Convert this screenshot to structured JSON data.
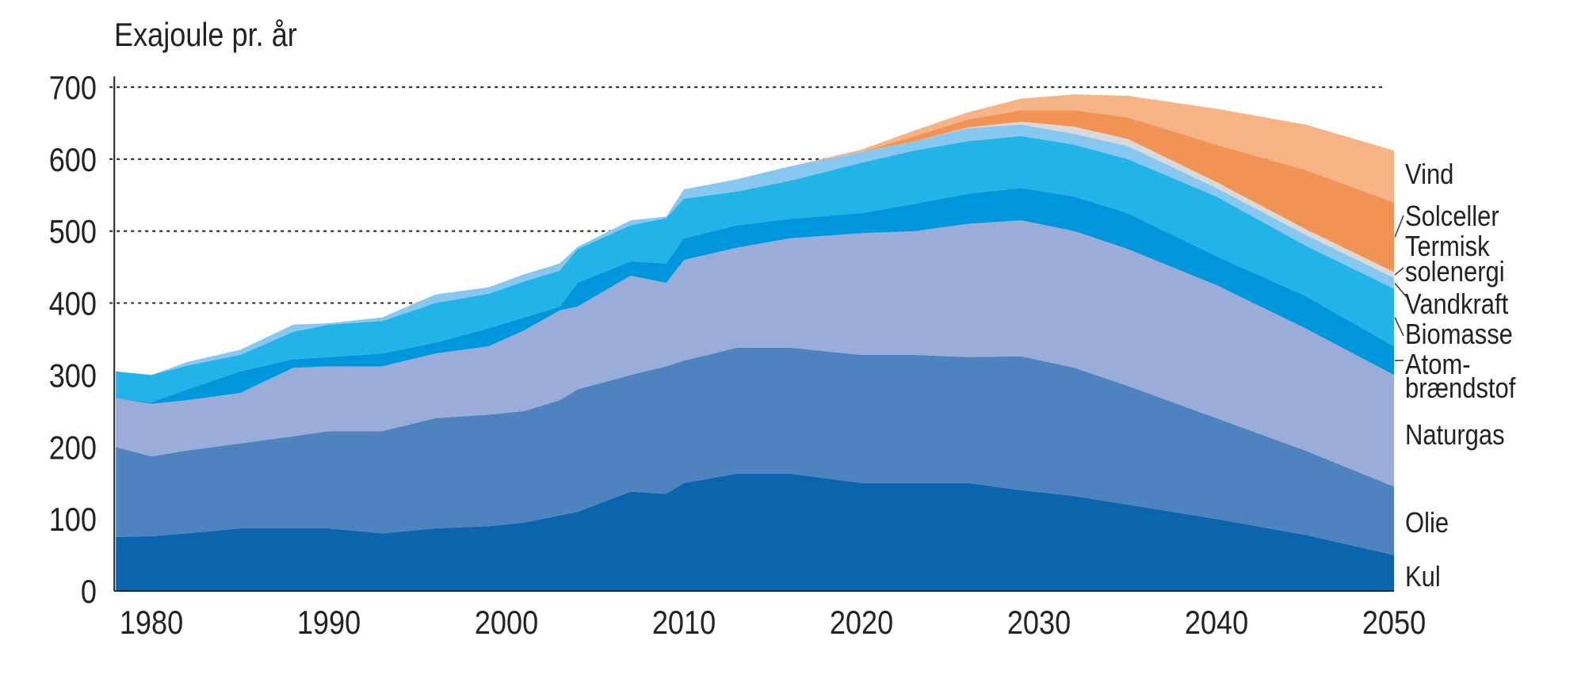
{
  "chart_data": {
    "type": "area",
    "stacked": true,
    "title": "",
    "ylabel": "Exajoule pr. år",
    "xlabel": "",
    "ylim": [
      0,
      700
    ],
    "xlim": [
      1978,
      2050
    ],
    "yticks": [
      0,
      100,
      200,
      300,
      400,
      500,
      600,
      700
    ],
    "xticks": [
      1980,
      1990,
      2000,
      2010,
      2020,
      2030,
      2040,
      2050
    ],
    "grid": "dotted horizontal at 400, 500, 600, 700",
    "legend": "right, labels at series ends",
    "x": [
      1978,
      1980,
      1982,
      1985,
      1988,
      1990,
      1993,
      1996,
      1999,
      2001,
      2003,
      2004,
      2007,
      2009,
      2010,
      2013,
      2016,
      2020,
      2023,
      2026,
      2029,
      2032,
      2035,
      2040,
      2045,
      2050
    ],
    "series": [
      {
        "name": "Kul",
        "color": "#0b65ad",
        "values": [
          75,
          76,
          80,
          87,
          87,
          87,
          80,
          87,
          90,
          95,
          105,
          110,
          138,
          135,
          150,
          163,
          163,
          150,
          150,
          150,
          140,
          132,
          120,
          100,
          78,
          50
        ]
      },
      {
        "name": "Olie",
        "color": "#4f83c0",
        "values": [
          125,
          111,
          115,
          118,
          128,
          135,
          142,
          153,
          155,
          155,
          160,
          170,
          162,
          177,
          170,
          175,
          175,
          178,
          178,
          175,
          186,
          178,
          165,
          140,
          117,
          95
        ]
      },
      {
        "name": "Naturgas",
        "color": "#99add8",
        "values": [
          68,
          73,
          70,
          70,
          95,
          90,
          90,
          90,
          95,
          112,
          125,
          115,
          138,
          116,
          140,
          139,
          152,
          169,
          172,
          185,
          189,
          190,
          190,
          185,
          170,
          155
        ]
      },
      {
        "name": "Atom-brændstof",
        "label_lines": [
          "Atom-",
          "brændstof"
        ],
        "color": "#0096db",
        "values": [
          0,
          2,
          15,
          30,
          12,
          13,
          18,
          15,
          25,
          18,
          5,
          33,
          20,
          27,
          30,
          31,
          27,
          28,
          38,
          42,
          45,
          48,
          50,
          40,
          45,
          40
        ]
      },
      {
        "name": "Biomasse",
        "color": "#22b3e8",
        "values": [
          37,
          38,
          33,
          23,
          38,
          45,
          45,
          55,
          48,
          50,
          50,
          47,
          50,
          63,
          55,
          47,
          53,
          70,
          74,
          73,
          72,
          72,
          75,
          83,
          70,
          80
        ]
      },
      {
        "name": "Vandkraft",
        "color": "#86c8ef",
        "values": [
          0,
          0,
          5,
          7,
          10,
          2,
          5,
          12,
          9,
          10,
          10,
          3,
          7,
          2,
          13,
          17,
          20,
          15,
          13,
          18,
          16,
          15,
          18,
          12,
          15,
          15
        ]
      },
      {
        "name": "Termisk solenergi",
        "label_lines": [
          "Termisk",
          "solenergi"
        ],
        "color": "#d9d9d9",
        "values": [
          0,
          0,
          0,
          0,
          0,
          0,
          0,
          0,
          0,
          0,
          0,
          0,
          0,
          0,
          0,
          0,
          0,
          0,
          0,
          1,
          4,
          10,
          10,
          8,
          8,
          8
        ]
      },
      {
        "name": "Solceller",
        "color": "#f09355",
        "values": [
          0,
          0,
          0,
          0,
          0,
          0,
          0,
          0,
          0,
          0,
          0,
          0,
          0,
          0,
          0,
          0,
          0,
          0,
          7,
          11,
          16,
          23,
          30,
          52,
          82,
          97
        ]
      },
      {
        "name": "Vind",
        "color": "#f6b386",
        "values": [
          0,
          0,
          0,
          0,
          0,
          0,
          0,
          0,
          0,
          0,
          0,
          0,
          0,
          0,
          0,
          0,
          0,
          3,
          8,
          10,
          16,
          22,
          30,
          50,
          63,
          72
        ]
      }
    ]
  }
}
